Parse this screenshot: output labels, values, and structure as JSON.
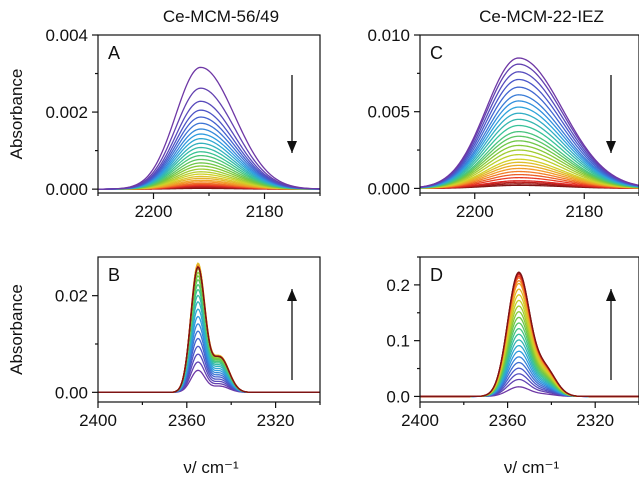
{
  "chart_data": [
    {
      "panel": "A",
      "type": "line",
      "title": "Ce-MCM-56/49",
      "xlabel": "",
      "ylabel": "Absorbance",
      "xlim": [
        2210,
        2170
      ],
      "ylim": [
        -0.0001,
        0.004
      ],
      "xticks": [
        2200,
        2180
      ],
      "xtick_labels": [
        "2200",
        "2180"
      ],
      "yticks": [
        0,
        0.002,
        0.004
      ],
      "ytick_labels": [
        "0.000",
        "0.002",
        "0.004"
      ],
      "peak": {
        "center": 2191.5,
        "sigma": 5.3
      },
      "curve_count": 30,
      "peak_heights": [
        0.00316,
        0.00262,
        0.00228,
        0.00205,
        0.00187,
        0.00171,
        0.00156,
        0.00143,
        0.00131,
        0.00119,
        0.00108,
        0.00097,
        0.00087,
        0.00077,
        0.00068,
        0.0006,
        0.00052,
        0.00045,
        0.00039,
        0.00033,
        0.00028,
        0.00023,
        0.00019,
        0.00015,
        0.00012,
        0.0001,
        8e-05,
        6e-05,
        4e-05,
        2e-05
      ],
      "arrow": "down"
    },
    {
      "panel": "B",
      "type": "line",
      "title": "",
      "xlabel": "ν/ cm⁻¹",
      "ylabel": "Absorbance",
      "xlim": [
        2400,
        2300
      ],
      "ylim": [
        -0.002,
        0.028
      ],
      "xticks": [
        2400,
        2360,
        2320
      ],
      "xtick_labels": [
        "2400",
        "2360",
        "2320"
      ],
      "yticks": [
        0,
        0.02
      ],
      "ytick_labels": [
        "0.00",
        "0.02"
      ],
      "peak": {
        "center": 2355,
        "sigma": 3.2
      },
      "curve_count": 30,
      "peak_heights": [
        0.0045,
        0.0062,
        0.0078,
        0.0094,
        0.011,
        0.0125,
        0.014,
        0.0155,
        0.017,
        0.0185,
        0.0198,
        0.021,
        0.022,
        0.023,
        0.0238,
        0.0245,
        0.0252,
        0.0258,
        0.0262,
        0.0264,
        0.0262,
        0.026,
        0.0258,
        0.0257,
        0.0256,
        0.0256,
        0.0256,
        0.0256,
        0.0256,
        0.0256
      ],
      "arrow": "up"
    },
    {
      "panel": "C",
      "type": "line",
      "title": "Ce-MCM-22-IEZ",
      "xlabel": "",
      "ylabel": "",
      "xlim": [
        2210,
        2170
      ],
      "ylim": [
        -0.0003,
        0.01
      ],
      "xticks": [
        2200,
        2180
      ],
      "xtick_labels": [
        "2200",
        "2180"
      ],
      "yticks": [
        0,
        0.005,
        0.01
      ],
      "ytick_labels": [
        "0.000",
        "0.005",
        "0.010"
      ],
      "peak": {
        "center": 2192,
        "sigma": 7
      },
      "curve_count": 28,
      "peak_heights": [
        0.0085,
        0.0081,
        0.0076,
        0.0071,
        0.0066,
        0.0061,
        0.0057,
        0.0053,
        0.0049,
        0.0045,
        0.0041,
        0.0037,
        0.0034,
        0.0031,
        0.0028,
        0.0025,
        0.0022,
        0.0019,
        0.0017,
        0.0015,
        0.0013,
        0.0011,
        0.0009,
        0.0007,
        0.0005,
        0.0004,
        0.0003,
        0.0002
      ],
      "arrow": "down"
    },
    {
      "panel": "D",
      "type": "line",
      "title": "",
      "xlabel": "ν/ cm⁻¹",
      "ylabel": "",
      "xlim": [
        2400,
        2300
      ],
      "ylim": [
        -0.01,
        0.25
      ],
      "xticks": [
        2400,
        2360,
        2320
      ],
      "xtick_labels": [
        "2400",
        "2360",
        "2320"
      ],
      "yticks": [
        0,
        0.1,
        0.2
      ],
      "ytick_labels": [
        "0.0",
        "0.1",
        "0.2"
      ],
      "peak": {
        "center": 2355,
        "sigma": 5
      },
      "curve_count": 26,
      "peak_heights": [
        0.017,
        0.03,
        0.04,
        0.05,
        0.06,
        0.07,
        0.08,
        0.09,
        0.1,
        0.11,
        0.12,
        0.13,
        0.14,
        0.15,
        0.16,
        0.17,
        0.18,
        0.19,
        0.2,
        0.205,
        0.21,
        0.213,
        0.216,
        0.218,
        0.219,
        0.22
      ],
      "arrow": "up"
    }
  ]
}
